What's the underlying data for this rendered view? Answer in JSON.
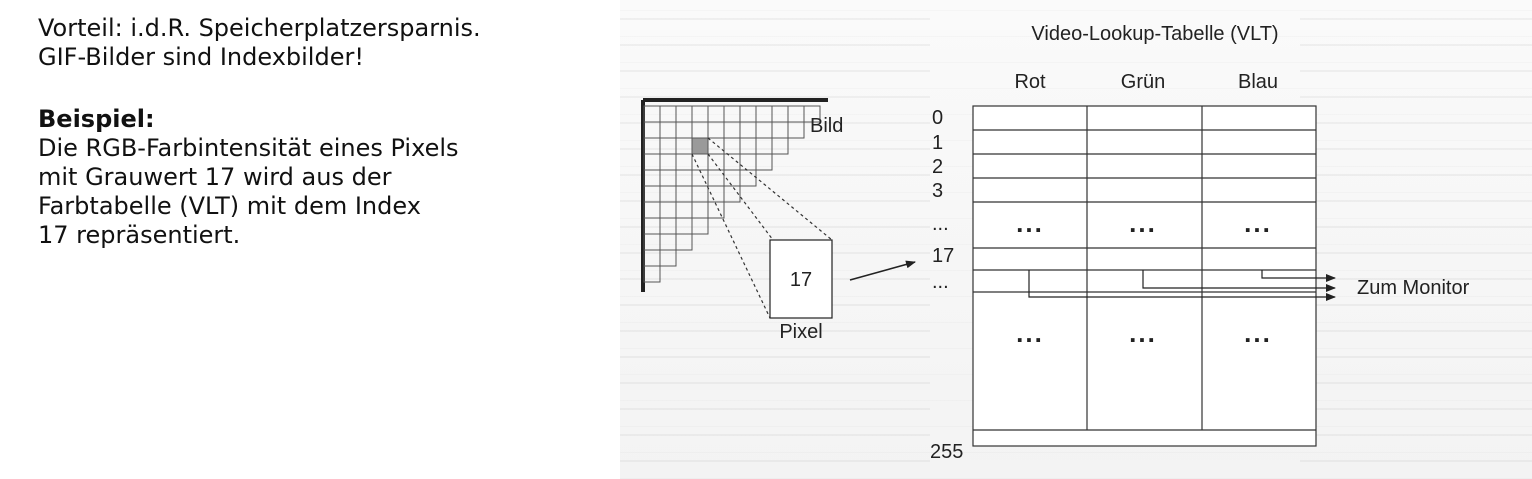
{
  "text": {
    "line1": "Vorteil: i.d.R. Speicherplatzersparnis.",
    "line2": "GIF-Bilder sind Indexbilder!",
    "example_heading": "Beispiel:",
    "example_line1": "Die RGB-Farbintensität eines Pixels",
    "example_line2": "mit Grauwert 17 wird aus der",
    "example_line3": "Farbtabelle (VLT) mit dem Index",
    "example_line4": "17 repräsentiert."
  },
  "diagram": {
    "title": "Video-Lookup-Tabelle (VLT)",
    "columns": [
      "Rot",
      "Grün",
      "Blau"
    ],
    "image_label": "Bild",
    "pixel_value": "17",
    "pixel_label": "Pixel",
    "row_index": {
      "r0": "0",
      "r1": "1",
      "r2": "2",
      "r3": "3",
      "ellipsis_top": "...",
      "r17": "17",
      "ellipsis_mid": "...",
      "r255": "255"
    },
    "cell_dots": "...",
    "output_label": "Zum Monitor"
  }
}
